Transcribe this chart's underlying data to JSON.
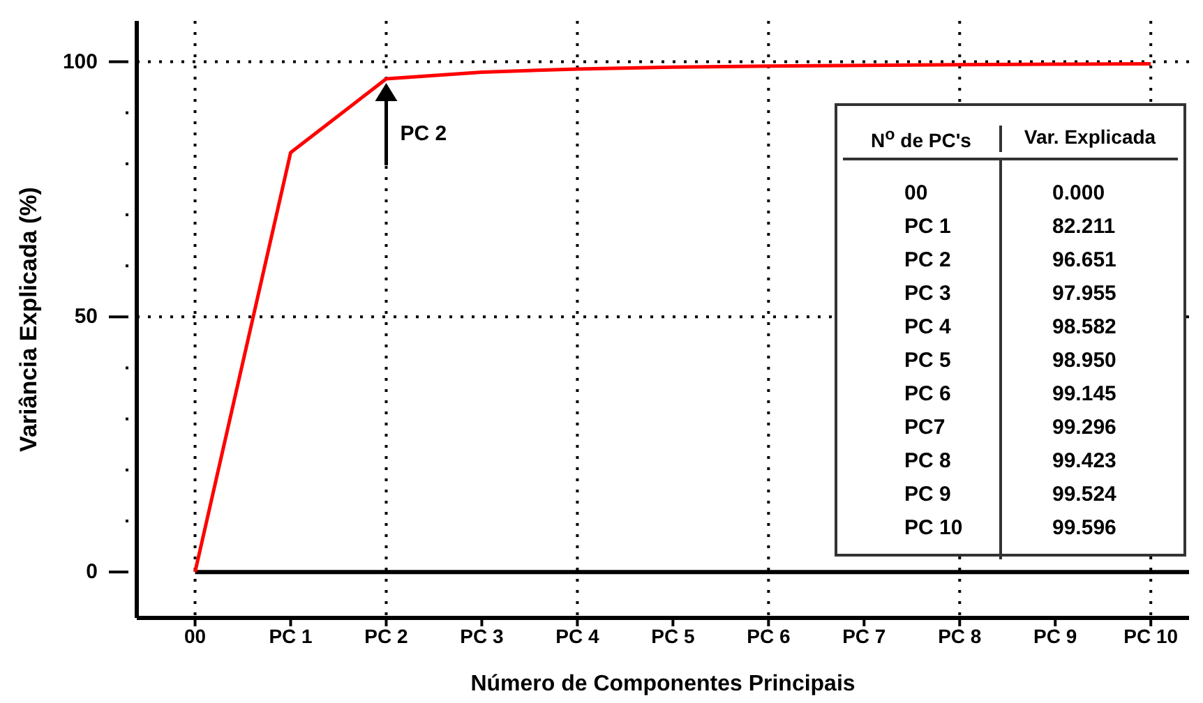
{
  "chart_data": {
    "type": "line",
    "xlabel": "Número de Componentes Principais",
    "ylabel": "Variância Explicada (%)",
    "categories": [
      "00",
      "PC 1",
      "PC 2",
      "PC 3",
      "PC 4",
      "PC 5",
      "PC 6",
      "PC 7",
      "PC 8",
      "PC 9",
      "PC 10"
    ],
    "series": [
      {
        "color": "#ff0000",
        "values": [
          0.0,
          82.211,
          96.651,
          97.955,
          98.582,
          98.95,
          99.145,
          99.296,
          99.423,
          99.524,
          99.596
        ]
      }
    ],
    "ylim": [
      -9,
      108
    ],
    "yticks": [
      0,
      {
        "value": 10,
        "label": null
      },
      {
        "value": 20,
        "label": null
      },
      {
        "value": 30,
        "label": null
      },
      {
        "value": 40,
        "label": null
      },
      50,
      {
        "value": 60,
        "label": null
      },
      {
        "value": 70,
        "label": null
      },
      {
        "value": 80,
        "label": null
      },
      {
        "value": 90,
        "label": null
      },
      100
    ],
    "grid": true,
    "marker": "none",
    "line_style": "solid",
    "legend": false,
    "ref_lines": [
      {
        "axis": "y",
        "value": 0,
        "color": "#000000",
        "line_style": "solid"
      }
    ],
    "annotations": [
      {
        "text": "PC 2",
        "x": "PC 2",
        "y": 96.651
      },
      "N$^{o}$ de PC's",
      "Var. Explicada",
      "00",
      "0.000",
      "PC 1",
      "82.211",
      "PC 2",
      "96.651",
      "PC 3",
      "97.955",
      "PC 4",
      "98.582",
      "PC 5",
      "98.950",
      "PC 6",
      "99.145",
      "PC7",
      "99.296",
      "PC 8",
      "99.423",
      "PC 9",
      "99.524",
      "PC 10",
      "99.596"
    ]
  }
}
